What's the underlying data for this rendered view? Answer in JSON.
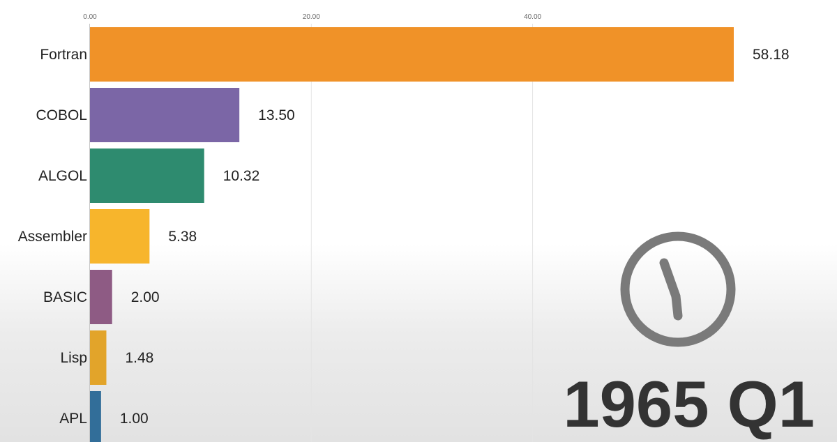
{
  "chart_data": {
    "type": "bar",
    "orientation": "horizontal",
    "title": "",
    "xlabel": "",
    "ylabel": "",
    "xlim": [
      0,
      58.18
    ],
    "x_ticks": [
      {
        "value": 0,
        "label": "0.00"
      },
      {
        "value": 20,
        "label": "20.00"
      },
      {
        "value": 40,
        "label": "40.00"
      }
    ],
    "x_tick_position": "top",
    "grid": true,
    "categories": [
      "Fortran",
      "COBOL",
      "ALGOL",
      "Assembler",
      "BASIC",
      "Lisp",
      "APL"
    ],
    "values": [
      58.18,
      13.5,
      10.32,
      5.38,
      2.0,
      1.48,
      1.0
    ],
    "value_labels": [
      "58.18",
      "13.50",
      "10.32",
      "5.38",
      "2.00",
      "1.48",
      "1.00"
    ],
    "colors": [
      "#f09228",
      "#7b66a6",
      "#2e8b6f",
      "#f7b52c",
      "#8e5b84",
      "#e2a42a",
      "#326e99"
    ],
    "period_label": "1965 Q1",
    "clock_icon": "clock-icon"
  }
}
